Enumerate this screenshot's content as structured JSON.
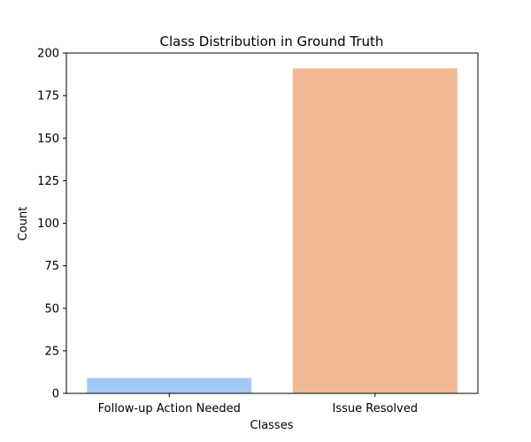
{
  "chart_data": {
    "type": "bar",
    "title": "Class Distribution in Ground Truth",
    "xlabel": "Classes",
    "ylabel": "Count",
    "categories": [
      "Follow-up Action Needed",
      "Issue Resolved"
    ],
    "values": [
      9,
      191
    ],
    "colors": [
      "#a1c9f4",
      "#f1b894"
    ],
    "ylim": [
      0,
      200
    ],
    "yticks": [
      0,
      25,
      50,
      75,
      100,
      125,
      150,
      175,
      200
    ],
    "grid": false,
    "legend": "none"
  }
}
